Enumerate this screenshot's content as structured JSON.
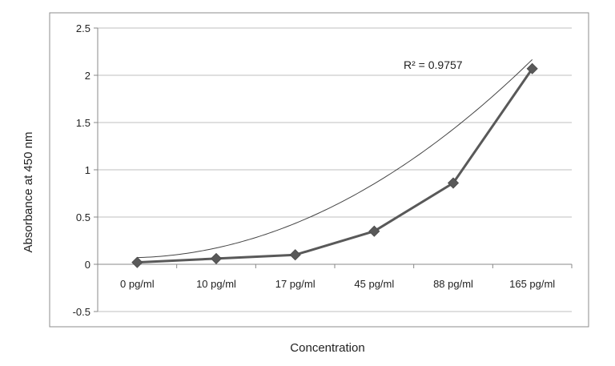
{
  "chart_data": {
    "type": "line",
    "title": "",
    "xlabel": "Concentration",
    "ylabel": "Absorbance at 450 nm",
    "categories": [
      "0 pg/ml",
      "10 pg/ml",
      "17 pg/ml",
      "45 pg/ml",
      "88 pg/ml",
      "165 pg/ml"
    ],
    "series": [
      {
        "name": "Absorbance",
        "values": [
          0.02,
          0.06,
          0.1,
          0.35,
          0.86,
          2.07
        ]
      }
    ],
    "trendline": {
      "type": "polynomial",
      "coefficients": [
        0.1273,
        -0.1359,
        0.0793
      ],
      "label": "R² = 0.9757"
    },
    "ylim": [
      -0.5,
      2.5
    ],
    "yticks": [
      -0.5,
      0,
      0.5,
      1,
      1.5,
      2,
      2.5
    ],
    "ytick_labels": [
      "-0.5",
      "0",
      "0.5",
      "1",
      "1.5",
      "2",
      "2.5"
    ],
    "grid": true,
    "legend": "none",
    "colors": {
      "series": "#595959",
      "marker": "#595959",
      "trend": "#444444",
      "grid": "#bfbfbf",
      "axis": "#888888",
      "frame": "#8c8c8c"
    }
  }
}
